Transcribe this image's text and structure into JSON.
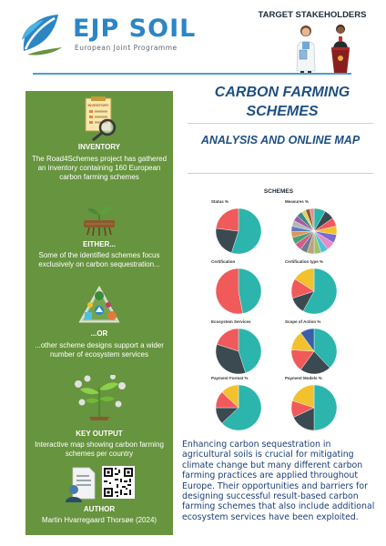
{
  "header": {
    "logo_title": "EJP SOIL",
    "logo_subtitle": "European Joint Programme",
    "stakeholders_title": "TARGET STAKEHOLDERS"
  },
  "panel": {
    "inventory_heading": "INVENTORY",
    "inventory_text": "The Road4Schemes project has gathered an inventory containing 160 European carbon farming schemes",
    "inventory_sheet_label": "INVENTORY",
    "either_heading": "EITHER...",
    "either_text": "Some of the identified schemes focus exclusively on carbon sequestration...",
    "or_heading": "...OR",
    "or_text": "...other scheme designs support a wider number of ecosystem services",
    "key_output_heading": "KEY OUTPUT",
    "key_output_text": "Interactive map showing carbon farming schemes per country",
    "author_heading": "AUTHOR",
    "author_text": "Martin Hvarregaard Thorsøe (2024)"
  },
  "main": {
    "title": "CARBON FARMING SCHEMES",
    "subtitle": "ANALYSIS AND ONLINE MAP",
    "schemes_title": "SCHEMES",
    "paragraph": "Enhancing carbon sequestration in agricultural soils is crucial for mitigating climate change but many different carbon farming practices are applied throughout Europe. Their opportunities and barriers for designing successful result-based carbon farming schemes that also include additional ecosystem services have been  exploited."
  },
  "colors": {
    "panel_green": "#67943e",
    "title_blue": "#1f4f82",
    "logo_blue": "#2c86c4",
    "pie_teal": "#2bb5ac",
    "pie_dark": "#3a4a50",
    "pie_red": "#f05a5a",
    "pie_yellow": "#f2c12e",
    "pie_blue": "#3a5fa8"
  },
  "chart_data": [
    {
      "type": "pie",
      "title": "Status %",
      "values": [
        55,
        22,
        23
      ],
      "colors": [
        "#2bb5ac",
        "#3a4a50",
        "#f05a5a"
      ]
    },
    {
      "type": "pie",
      "title": "Measures %",
      "values": [
        8,
        7,
        6,
        6,
        6,
        6,
        5,
        5,
        5,
        5,
        5,
        5,
        4,
        4,
        4,
        4,
        4,
        3,
        3,
        3
      ],
      "colors": [
        "#2bb5ac",
        "#3a4a50",
        "#f05a5a",
        "#f2c12e",
        "#7b6ad0",
        "#e68ac8",
        "#4bc1e0",
        "#9cc36a",
        "#c0a080",
        "#6d7d8a",
        "#d45b8f",
        "#46a36f",
        "#e0935a",
        "#5a7cc0",
        "#b6b6b6",
        "#a55aa5",
        "#3a8a8a",
        "#e0d060",
        "#8a5a3a",
        "#f08a8a"
      ]
    },
    {
      "type": "pie",
      "title": "Certification",
      "values": [
        47,
        53
      ],
      "colors": [
        "#2bb5ac",
        "#f05a5a"
      ]
    },
    {
      "type": "pie",
      "title": "Certification type %",
      "values": [
        58,
        12,
        14,
        16
      ],
      "colors": [
        "#2bb5ac",
        "#3a4a50",
        "#f05a5a",
        "#f2c12e"
      ]
    },
    {
      "type": "pie",
      "title": "Ecosystem Services",
      "values": [
        45,
        35,
        20
      ],
      "colors": [
        "#2bb5ac",
        "#3a4a50",
        "#f05a5a"
      ]
    },
    {
      "type": "pie",
      "title": "Scope of Action %",
      "values": [
        38,
        22,
        16,
        14,
        10
      ],
      "colors": [
        "#2bb5ac",
        "#3a4a50",
        "#f05a5a",
        "#f2c12e",
        "#3a5fa8"
      ]
    },
    {
      "type": "pie",
      "title": "Payment Format %",
      "values": [
        63,
        12,
        12,
        13
      ],
      "colors": [
        "#2bb5ac",
        "#3a4a50",
        "#f05a5a",
        "#f2c12e"
      ]
    },
    {
      "type": "pie",
      "title": "Payment Models %",
      "values": [
        50,
        18,
        12,
        20
      ],
      "colors": [
        "#2bb5ac",
        "#3a4a50",
        "#f05a5a",
        "#f2c12e"
      ]
    }
  ]
}
